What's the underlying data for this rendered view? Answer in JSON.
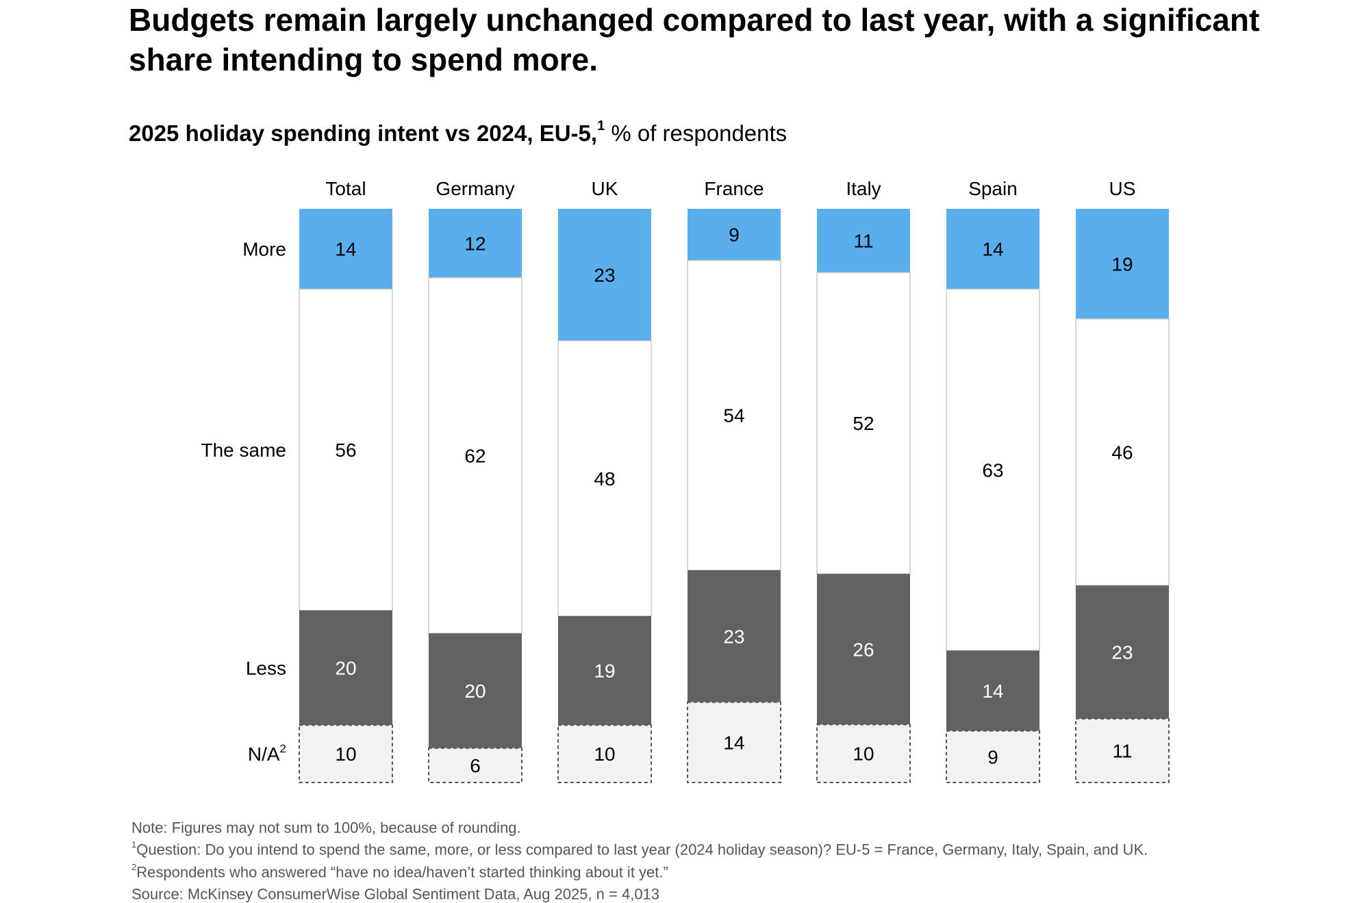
{
  "headline": "Budgets remain largely unchanged compared to last year, with a significant share intending to spend more.",
  "subtitle": {
    "bold": "2025 holiday spending intent vs 2024, EU-5,",
    "footnote_mark": "1",
    "regular": " % of respondents"
  },
  "chart_data": {
    "type": "bar",
    "stacked": true,
    "orientation": "vertical",
    "categories": [
      "Total",
      "Germany",
      "UK",
      "France",
      "Italy",
      "Spain",
      "US"
    ],
    "series": [
      {
        "name": "More",
        "values": [
          14,
          12,
          23,
          9,
          11,
          14,
          19
        ],
        "color": "#5AAEEC"
      },
      {
        "name": "The same",
        "values": [
          56,
          62,
          48,
          54,
          52,
          63,
          46
        ],
        "color": "#FFFFFF"
      },
      {
        "name": "Less",
        "values": [
          20,
          20,
          19,
          23,
          26,
          14,
          23
        ],
        "color": "#626262"
      },
      {
        "name": "N/A",
        "name_footnote": "2",
        "values": [
          10,
          6,
          10,
          14,
          10,
          9,
          11
        ],
        "color": "#F2F2F2"
      }
    ],
    "ylim": [
      0,
      100
    ],
    "data_labels": true,
    "legend": "left row labels"
  },
  "notes": [
    {
      "mark": "",
      "text": "Note: Figures may not sum to 100%, because of rounding."
    },
    {
      "mark": "1",
      "text": "Question: Do you intend to spend the same, more, or less compared to last year (2024 holiday season)? EU-5 = France, Germany, Italy, Spain, and UK."
    },
    {
      "mark": "2",
      "text": "Respondents who answered “have no idea/haven’t started thinking about it yet.”"
    },
    {
      "mark": "",
      "text": "Source: McKinsey ConsumerWise Global Sentiment Data, Aug 2025, n = 4,013"
    }
  ]
}
